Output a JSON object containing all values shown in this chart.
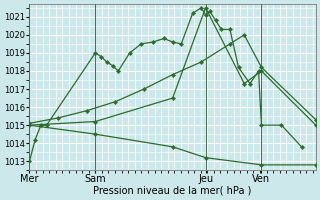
{
  "bg_color": "#cde8ea",
  "grid_color": "#ffffff",
  "line_color": "#2d6b2d",
  "ylim": [
    1012.5,
    1021.7
  ],
  "yticks": [
    1013,
    1014,
    1015,
    1016,
    1017,
    1018,
    1019,
    1020,
    1021
  ],
  "xlim": [
    0,
    1.0
  ],
  "day_labels": [
    "Mer",
    "Sam",
    "Jeu",
    "Ven"
  ],
  "day_positions": [
    0.0,
    0.23,
    0.615,
    0.81
  ],
  "xlabel": "Pression niveau de la mer( hPa )",
  "s1_x": [
    0.0,
    0.02,
    0.04,
    0.06,
    0.23,
    0.25,
    0.27,
    0.29,
    0.31,
    0.35,
    0.39,
    0.43,
    0.47,
    0.5,
    0.53,
    0.57,
    0.6,
    0.615,
    0.63,
    0.65,
    0.67,
    0.7,
    0.73,
    0.77,
    0.8,
    0.81,
    0.88,
    0.95
  ],
  "s1_y": [
    1013.0,
    1014.2,
    1015.0,
    1015.0,
    1019.0,
    1018.8,
    1018.5,
    1018.3,
    1018.0,
    1019.0,
    1019.5,
    1019.6,
    1019.8,
    1019.6,
    1019.5,
    1021.2,
    1021.5,
    1021.1,
    1021.3,
    1020.8,
    1020.3,
    1020.3,
    1018.2,
    1017.3,
    1018.0,
    1015.0,
    1015.0,
    1013.8
  ],
  "s2_x": [
    0.0,
    0.1,
    0.2,
    0.3,
    0.4,
    0.5,
    0.6,
    0.7,
    0.75,
    0.81,
    1.0
  ],
  "s2_y": [
    1015.1,
    1015.4,
    1015.8,
    1016.3,
    1017.0,
    1017.8,
    1018.5,
    1019.5,
    1020.0,
    1018.2,
    1015.3
  ],
  "s3_x": [
    0.0,
    0.23,
    0.5,
    0.615,
    0.75,
    0.81,
    1.0
  ],
  "s3_y": [
    1015.0,
    1015.2,
    1016.5,
    1021.5,
    1017.3,
    1018.0,
    1015.0
  ],
  "s4_x": [
    0.0,
    0.23,
    0.5,
    0.615,
    0.81,
    1.0
  ],
  "s4_y": [
    1015.0,
    1014.5,
    1013.8,
    1013.2,
    1012.8,
    1012.8
  ]
}
